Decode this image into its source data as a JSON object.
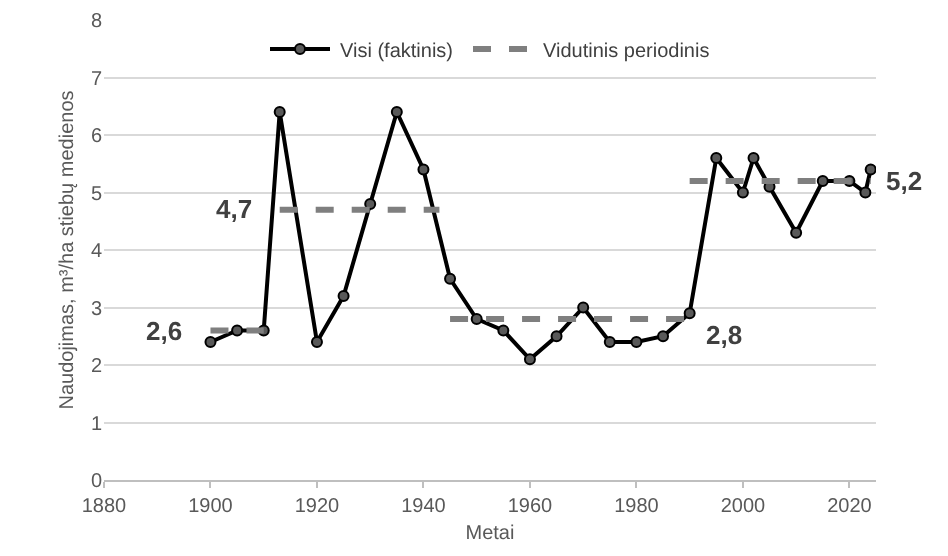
{
  "chart_data": {
    "type": "line",
    "xlabel": "Metai",
    "ylabel": "Naudojimas, m³/ha stiebų medienos",
    "xlim": [
      1880,
      2025
    ],
    "xticks": [
      1880,
      1900,
      1920,
      1940,
      1960,
      1980,
      2000,
      2020
    ],
    "ylim": [
      0,
      8
    ],
    "yticks": [
      0,
      1,
      2,
      3,
      4,
      5,
      6,
      7,
      8
    ],
    "grid": "y",
    "legend": "top",
    "series": [
      {
        "name": "Visi (faktinis)",
        "color": "#000000",
        "marker": "circle",
        "line_style": "solid",
        "x": [
          1900,
          1905,
          1910,
          1913,
          1920,
          1925,
          1930,
          1935,
          1940,
          1945,
          1950,
          1955,
          1960,
          1965,
          1970,
          1975,
          1980,
          1985,
          1990,
          1995,
          2000,
          2002,
          2005,
          2010,
          2015,
          2020,
          2023,
          2024
        ],
        "values": [
          2.4,
          2.6,
          2.6,
          6.4,
          2.4,
          3.2,
          4.8,
          6.4,
          5.4,
          3.5,
          2.8,
          2.6,
          2.1,
          2.5,
          3.0,
          2.4,
          2.4,
          2.5,
          2.9,
          5.6,
          5.0,
          5.6,
          5.1,
          4.3,
          5.2,
          5.2,
          5.0,
          5.4
        ]
      },
      {
        "name": "Vidutinis periodinis",
        "color": "#7f7f7f",
        "marker": "none",
        "line_style": "dashed",
        "x": [
          1900,
          1910
        ],
        "values": [
          2.6,
          2.6
        ]
      },
      {
        "color": "#7f7f7f",
        "marker": "none",
        "line_style": "dashed",
        "x": [
          1913,
          1943
        ],
        "values": [
          4.7,
          4.7
        ]
      },
      {
        "color": "#7f7f7f",
        "marker": "none",
        "line_style": "dashed",
        "x": [
          1945,
          1990
        ],
        "values": [
          2.8,
          2.8
        ]
      },
      {
        "color": "#7f7f7f",
        "marker": "none",
        "line_style": "dashed",
        "x": [
          1990,
          2024
        ],
        "values": [
          5.2,
          5.2
        ]
      }
    ],
    "annotations": [
      {
        "text": "2,6",
        "x": 1900,
        "y": 2.6
      },
      {
        "text": "4,7",
        "x": 1913,
        "y": 4.7
      },
      {
        "text": "2,8",
        "x": 1990,
        "y": 2.8
      },
      {
        "text": "5,2",
        "x": 2024,
        "y": 5.2
      }
    ]
  }
}
